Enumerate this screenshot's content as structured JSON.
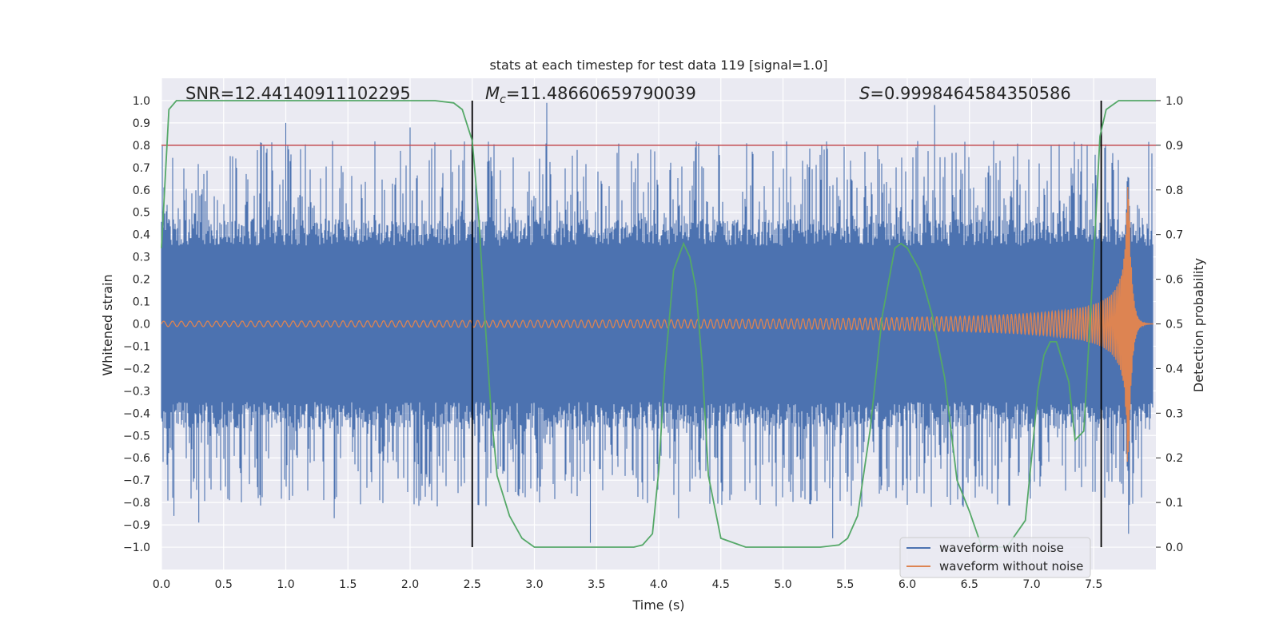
{
  "chart_data": {
    "type": "line",
    "title": "stats at each timestep for test data 119 [signal=1.0]",
    "xlabel": "Time (s)",
    "ylabel": "Whitened strain",
    "ylabel_right": "Detection probability",
    "xlim": [
      0.0,
      8.0
    ],
    "ylim": [
      -1.1,
      1.1
    ],
    "ylim_right": [
      -0.05,
      1.05
    ],
    "x_ticks": [
      "0.0",
      "0.5",
      "1.0",
      "1.5",
      "2.0",
      "2.5",
      "3.0",
      "3.5",
      "4.0",
      "4.5",
      "5.0",
      "5.5",
      "6.0",
      "6.5",
      "7.0",
      "7.5"
    ],
    "y_ticks": [
      "1.0",
      "0.9",
      "0.8",
      "0.7",
      "0.6",
      "0.5",
      "0.4",
      "0.3",
      "0.2",
      "0.1",
      "0.0",
      "−0.1",
      "−0.2",
      "−0.3",
      "−0.4",
      "−0.5",
      "−0.6",
      "−0.7",
      "−0.8",
      "−0.9",
      "−1.0"
    ],
    "y_ticks_right": [
      "1.0",
      "0.9",
      "0.8",
      "0.7",
      "0.6",
      "0.5",
      "0.4",
      "0.3",
      "0.2",
      "0.1",
      "0.0"
    ],
    "grid": true,
    "background": "#eaeaf2",
    "annotations": {
      "snr": "SNR=12.44140911102295",
      "mc_prefix": "M",
      "mc_sub": "c",
      "mc_value": "=11.48660659790039",
      "s_prefix": "S",
      "s_value": "=0.9998464584350586"
    },
    "series": [
      {
        "name": "waveform with noise",
        "color": "#4c72b0",
        "note_x": "noise amplitude roughly ±0.45 with spikes up to ~±1.0",
        "envelope_peaks": [
          0.93,
          -0.98,
          0.99,
          -0.93
        ]
      },
      {
        "name": "waveform without noise",
        "color": "#dd8452",
        "chirp_start_amplitude": 0.012,
        "chirp_peak_time": 7.78,
        "chirp_peak_upper": 0.65,
        "chirp_peak_lower": -0.57
      },
      {
        "name": "",
        "color": "#55a868",
        "axis": "right",
        "x": [
          0.0,
          0.06,
          0.12,
          0.2,
          0.5,
          1.0,
          1.5,
          2.0,
          2.2,
          2.35,
          2.42,
          2.5,
          2.55,
          2.6,
          2.65,
          2.7,
          2.8,
          2.9,
          3.0,
          3.2,
          3.5,
          3.8,
          3.87,
          3.95,
          4.0,
          4.05,
          4.12,
          4.2,
          4.25,
          4.3,
          4.35,
          4.4,
          4.5,
          4.7,
          5.0,
          5.3,
          5.45,
          5.52,
          5.6,
          5.7,
          5.8,
          5.9,
          5.95,
          6.0,
          6.1,
          6.2,
          6.3,
          6.4,
          6.5,
          6.6,
          6.8,
          6.95,
          7.0,
          7.05,
          7.1,
          7.15,
          7.2,
          7.3,
          7.35,
          7.42,
          7.5,
          7.55,
          7.6,
          7.65,
          7.7,
          7.8,
          8.0
        ],
        "y": [
          0.67,
          0.98,
          1.0,
          1.0,
          1.0,
          1.0,
          1.0,
          1.0,
          1.0,
          0.995,
          0.98,
          0.91,
          0.75,
          0.52,
          0.31,
          0.16,
          0.07,
          0.02,
          0.0,
          0.0,
          0.0,
          0.0,
          0.005,
          0.03,
          0.17,
          0.4,
          0.62,
          0.68,
          0.65,
          0.58,
          0.41,
          0.16,
          0.02,
          0.0,
          0.0,
          0.0,
          0.005,
          0.02,
          0.07,
          0.26,
          0.52,
          0.67,
          0.68,
          0.67,
          0.62,
          0.52,
          0.38,
          0.15,
          0.08,
          0.0,
          0.0,
          0.06,
          0.2,
          0.35,
          0.43,
          0.46,
          0.46,
          0.37,
          0.24,
          0.26,
          0.65,
          0.92,
          0.98,
          0.99,
          1.0,
          1.0,
          1.0
        ]
      },
      {
        "name": "",
        "color": "#c44e52",
        "axis": "left",
        "type": "horizontal_line",
        "y": 0.8
      },
      {
        "name": "",
        "color": "#000000",
        "type": "vertical_lines",
        "x": [
          2.5,
          7.56
        ],
        "y_range": [
          -1.0,
          1.0
        ]
      }
    ],
    "legend": {
      "placement": "lower-right",
      "entries": [
        "waveform with noise",
        "waveform without noise"
      ]
    }
  }
}
